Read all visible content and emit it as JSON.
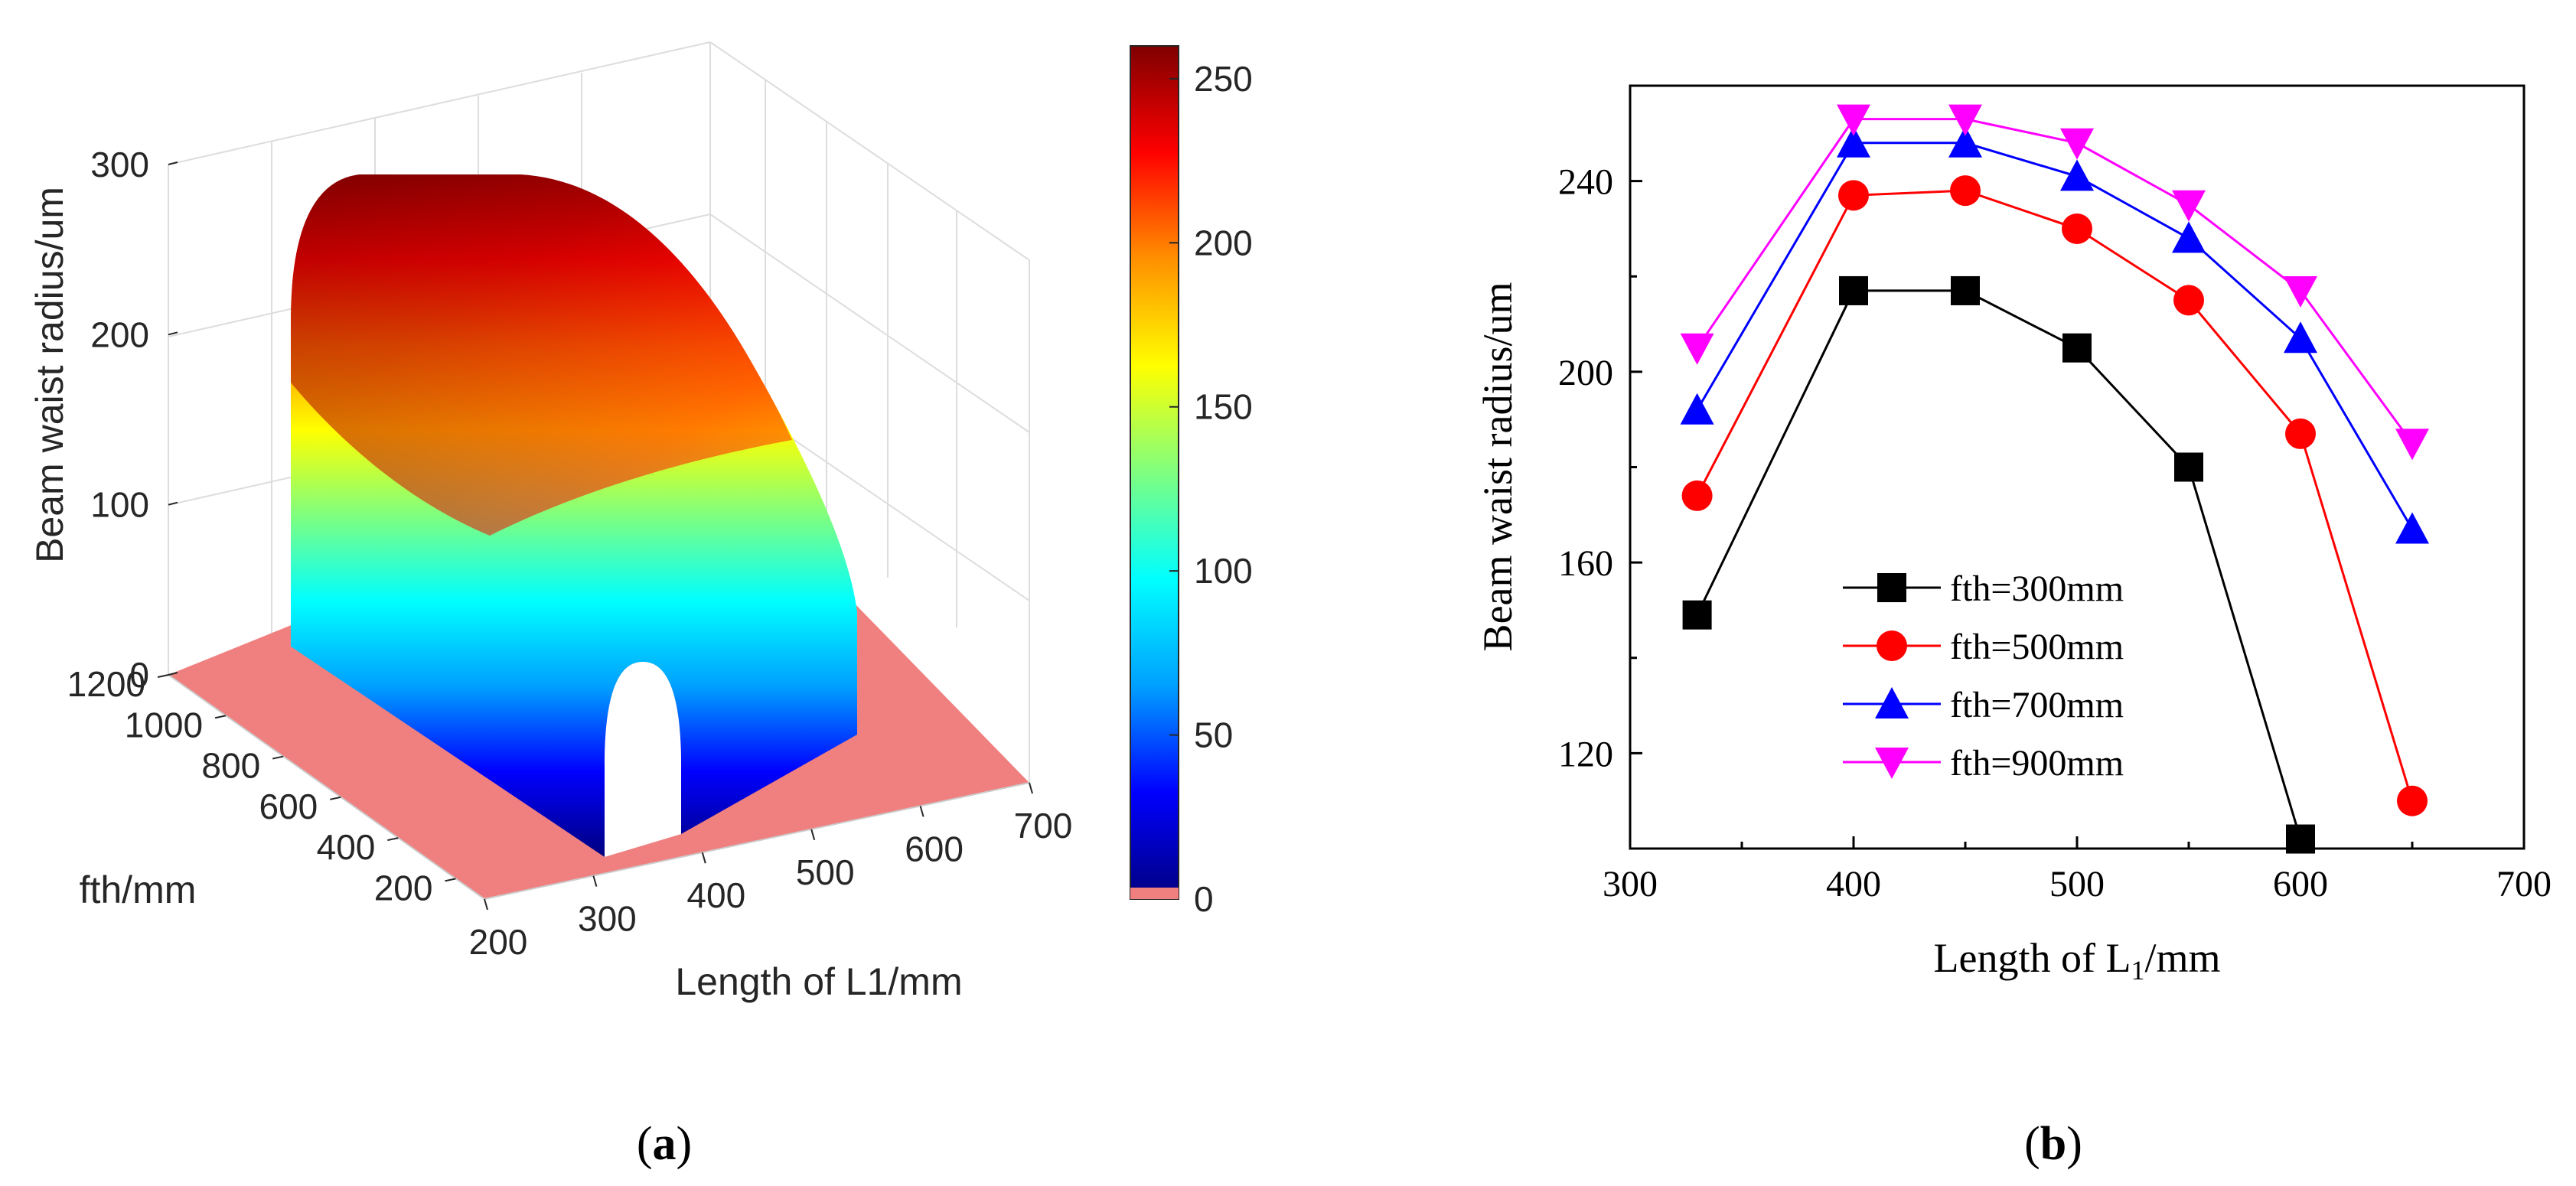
{
  "colors": {
    "black_series": "#000000",
    "red_series": "#ff0000",
    "blue_series": "#0000ff",
    "magenta_series": "#ff00ff",
    "floor": "#f08080",
    "box_grid": "#dddddd",
    "colormap": [
      "#00007f",
      "#0000ff",
      "#00a0ff",
      "#00ffff",
      "#7fff7f",
      "#ffff00",
      "#ff9000",
      "#ff0000",
      "#7f0000"
    ]
  },
  "panel_a": {
    "label_open": "(",
    "label_letter": "a",
    "label_close": ")"
  },
  "panel_b": {
    "label_open": "(",
    "label_letter": "b",
    "label_close": ")"
  },
  "chart_data": [
    {
      "type": "surface",
      "title": "",
      "zlabel": "Beam waist radius/um",
      "xlabel": "Length of L1/mm",
      "ylabel": "fth/mm",
      "x_ticks": [
        "200",
        "300",
        "400",
        "500",
        "600",
        "700"
      ],
      "y_ticks": [
        "200",
        "400",
        "600",
        "800",
        "1000",
        "1200"
      ],
      "z_ticks": [
        "0",
        "100",
        "200",
        "300"
      ],
      "xlim": [
        200,
        700
      ],
      "ylim": [
        100,
        1200
      ],
      "zlim": [
        0,
        300
      ],
      "colorbar": {
        "range": [
          0,
          260
        ],
        "ticks": [
          "0",
          "50",
          "100",
          "150",
          "200",
          "250"
        ]
      },
      "surface_peak": 255
    },
    {
      "type": "line",
      "title": "",
      "xlabel_main": "Length of L",
      "xlabel_sub": "1",
      "xlabel_unit": "/mm",
      "ylabel": "Beam waist radius/um",
      "xlim": [
        300,
        700
      ],
      "ylim": [
        100,
        260
      ],
      "x_ticks": [
        300,
        400,
        500,
        600,
        700
      ],
      "y_ticks": [
        120,
        160,
        200,
        240
      ],
      "x": [
        330,
        400,
        450,
        500,
        550,
        600,
        650
      ],
      "series": [
        {
          "name": "fth=300mm",
          "marker": "square",
          "color": "#000000",
          "x": [
            330,
            400,
            450,
            500,
            550,
            600
          ],
          "values": [
            149,
            217,
            217,
            205,
            180,
            102
          ]
        },
        {
          "name": "fth=500mm",
          "marker": "circle",
          "color": "#ff0000",
          "x": [
            330,
            400,
            450,
            500,
            550,
            600,
            650
          ],
          "values": [
            174,
            237,
            238,
            230,
            215,
            187,
            110
          ]
        },
        {
          "name": "fth=700mm",
          "marker": "triangle-up",
          "color": "#0000ff",
          "x": [
            330,
            400,
            450,
            500,
            550,
            600,
            650
          ],
          "values": [
            192,
            248,
            248,
            241,
            228,
            207,
            167
          ]
        },
        {
          "name": "fth=900mm",
          "marker": "triangle-down",
          "color": "#ff00ff",
          "x": [
            330,
            400,
            450,
            500,
            550,
            600,
            650
          ],
          "values": [
            205,
            253,
            253,
            248,
            235,
            217,
            185
          ]
        }
      ]
    }
  ]
}
